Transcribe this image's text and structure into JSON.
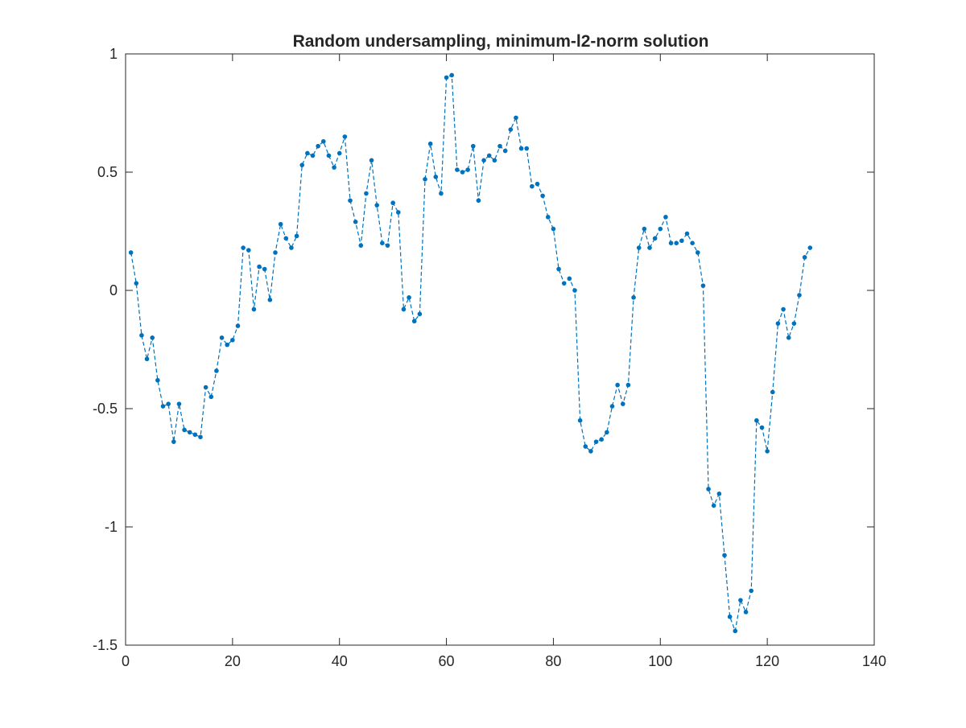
{
  "chart_data": {
    "type": "line",
    "title": "Random undersampling, minimum-l2-norm solution",
    "xlabel": "",
    "ylabel": "",
    "xlim": [
      0,
      140
    ],
    "ylim": [
      -1.5,
      1
    ],
    "xticks": [
      0,
      20,
      40,
      60,
      80,
      100,
      120,
      140
    ],
    "xtick_labels": [
      "0",
      "20",
      "40",
      "60",
      "80",
      "100",
      "120",
      "140"
    ],
    "yticks": [
      -1.5,
      -1,
      -0.5,
      0,
      0.5,
      1
    ],
    "ytick_labels": [
      "-1.5",
      "-1",
      "-0.5",
      "0",
      "0.5",
      "1"
    ],
    "grid": false,
    "line_style": "dashed",
    "marker": "dot",
    "colors": {
      "series": "#0072BD",
      "axes": "#262626",
      "background": "#ffffff"
    },
    "series": [
      {
        "x": [
          1,
          2,
          3,
          4,
          5,
          6,
          7,
          8,
          9,
          10,
          11,
          12,
          13,
          14,
          15,
          16,
          17,
          18,
          19,
          20,
          21,
          22,
          23,
          24,
          25,
          26,
          27,
          28,
          29,
          30,
          31,
          32,
          33,
          34,
          35,
          36,
          37,
          38,
          39,
          40,
          41,
          42,
          43,
          44,
          45,
          46,
          47,
          48,
          49,
          50,
          51,
          52,
          53,
          54,
          55,
          56,
          57,
          58,
          59,
          60,
          61,
          62,
          63,
          64,
          65,
          66,
          67,
          68,
          69,
          70,
          71,
          72,
          73,
          74,
          75,
          76,
          77,
          78,
          79,
          80,
          81,
          82,
          83,
          84,
          85,
          86,
          87,
          88,
          89,
          90,
          91,
          92,
          93,
          94,
          95,
          96,
          97,
          98,
          99,
          100,
          101,
          102,
          103,
          104,
          105,
          106,
          107,
          108,
          109,
          110,
          111,
          112,
          113,
          114,
          115,
          116,
          117,
          118,
          119,
          120,
          121,
          122,
          123,
          124,
          125,
          126,
          127,
          128
        ],
        "values": [
          0.16,
          0.03,
          -0.19,
          -0.29,
          -0.2,
          -0.38,
          -0.49,
          -0.48,
          -0.64,
          -0.48,
          -0.59,
          -0.6,
          -0.61,
          -0.62,
          -0.41,
          -0.45,
          -0.34,
          -0.2,
          -0.23,
          -0.21,
          -0.15,
          0.18,
          0.17,
          -0.08,
          0.1,
          0.09,
          -0.04,
          0.16,
          0.28,
          0.22,
          0.18,
          0.23,
          0.53,
          0.58,
          0.57,
          0.61,
          0.63,
          0.57,
          0.52,
          0.58,
          0.65,
          0.38,
          0.29,
          0.19,
          0.41,
          0.55,
          0.36,
          0.2,
          0.19,
          0.37,
          0.33,
          -0.08,
          -0.03,
          -0.13,
          -0.1,
          0.47,
          0.62,
          0.48,
          0.41,
          0.9,
          0.91,
          0.51,
          0.5,
          0.51,
          0.61,
          0.38,
          0.55,
          0.57,
          0.55,
          0.61,
          0.59,
          0.68,
          0.73,
          0.6,
          0.6,
          0.44,
          0.45,
          0.4,
          0.31,
          0.26,
          0.09,
          0.03,
          0.05,
          0.0,
          -0.55,
          -0.66,
          -0.68,
          -0.64,
          -0.63,
          -0.6,
          -0.49,
          -0.4,
          -0.48,
          -0.4,
          -0.03,
          0.18,
          0.26,
          0.18,
          0.22,
          0.26,
          0.31,
          0.2,
          0.2,
          0.21,
          0.24,
          0.2,
          0.16,
          0.02,
          -0.84,
          -0.91,
          -0.86,
          -1.12,
          -1.38,
          -1.44,
          -1.31,
          -1.36,
          -1.27,
          -0.55,
          -0.58,
          -0.68,
          -0.43,
          -0.14,
          -0.08,
          -0.2,
          -0.14,
          -0.02,
          0.14,
          0.18
        ]
      }
    ]
  }
}
